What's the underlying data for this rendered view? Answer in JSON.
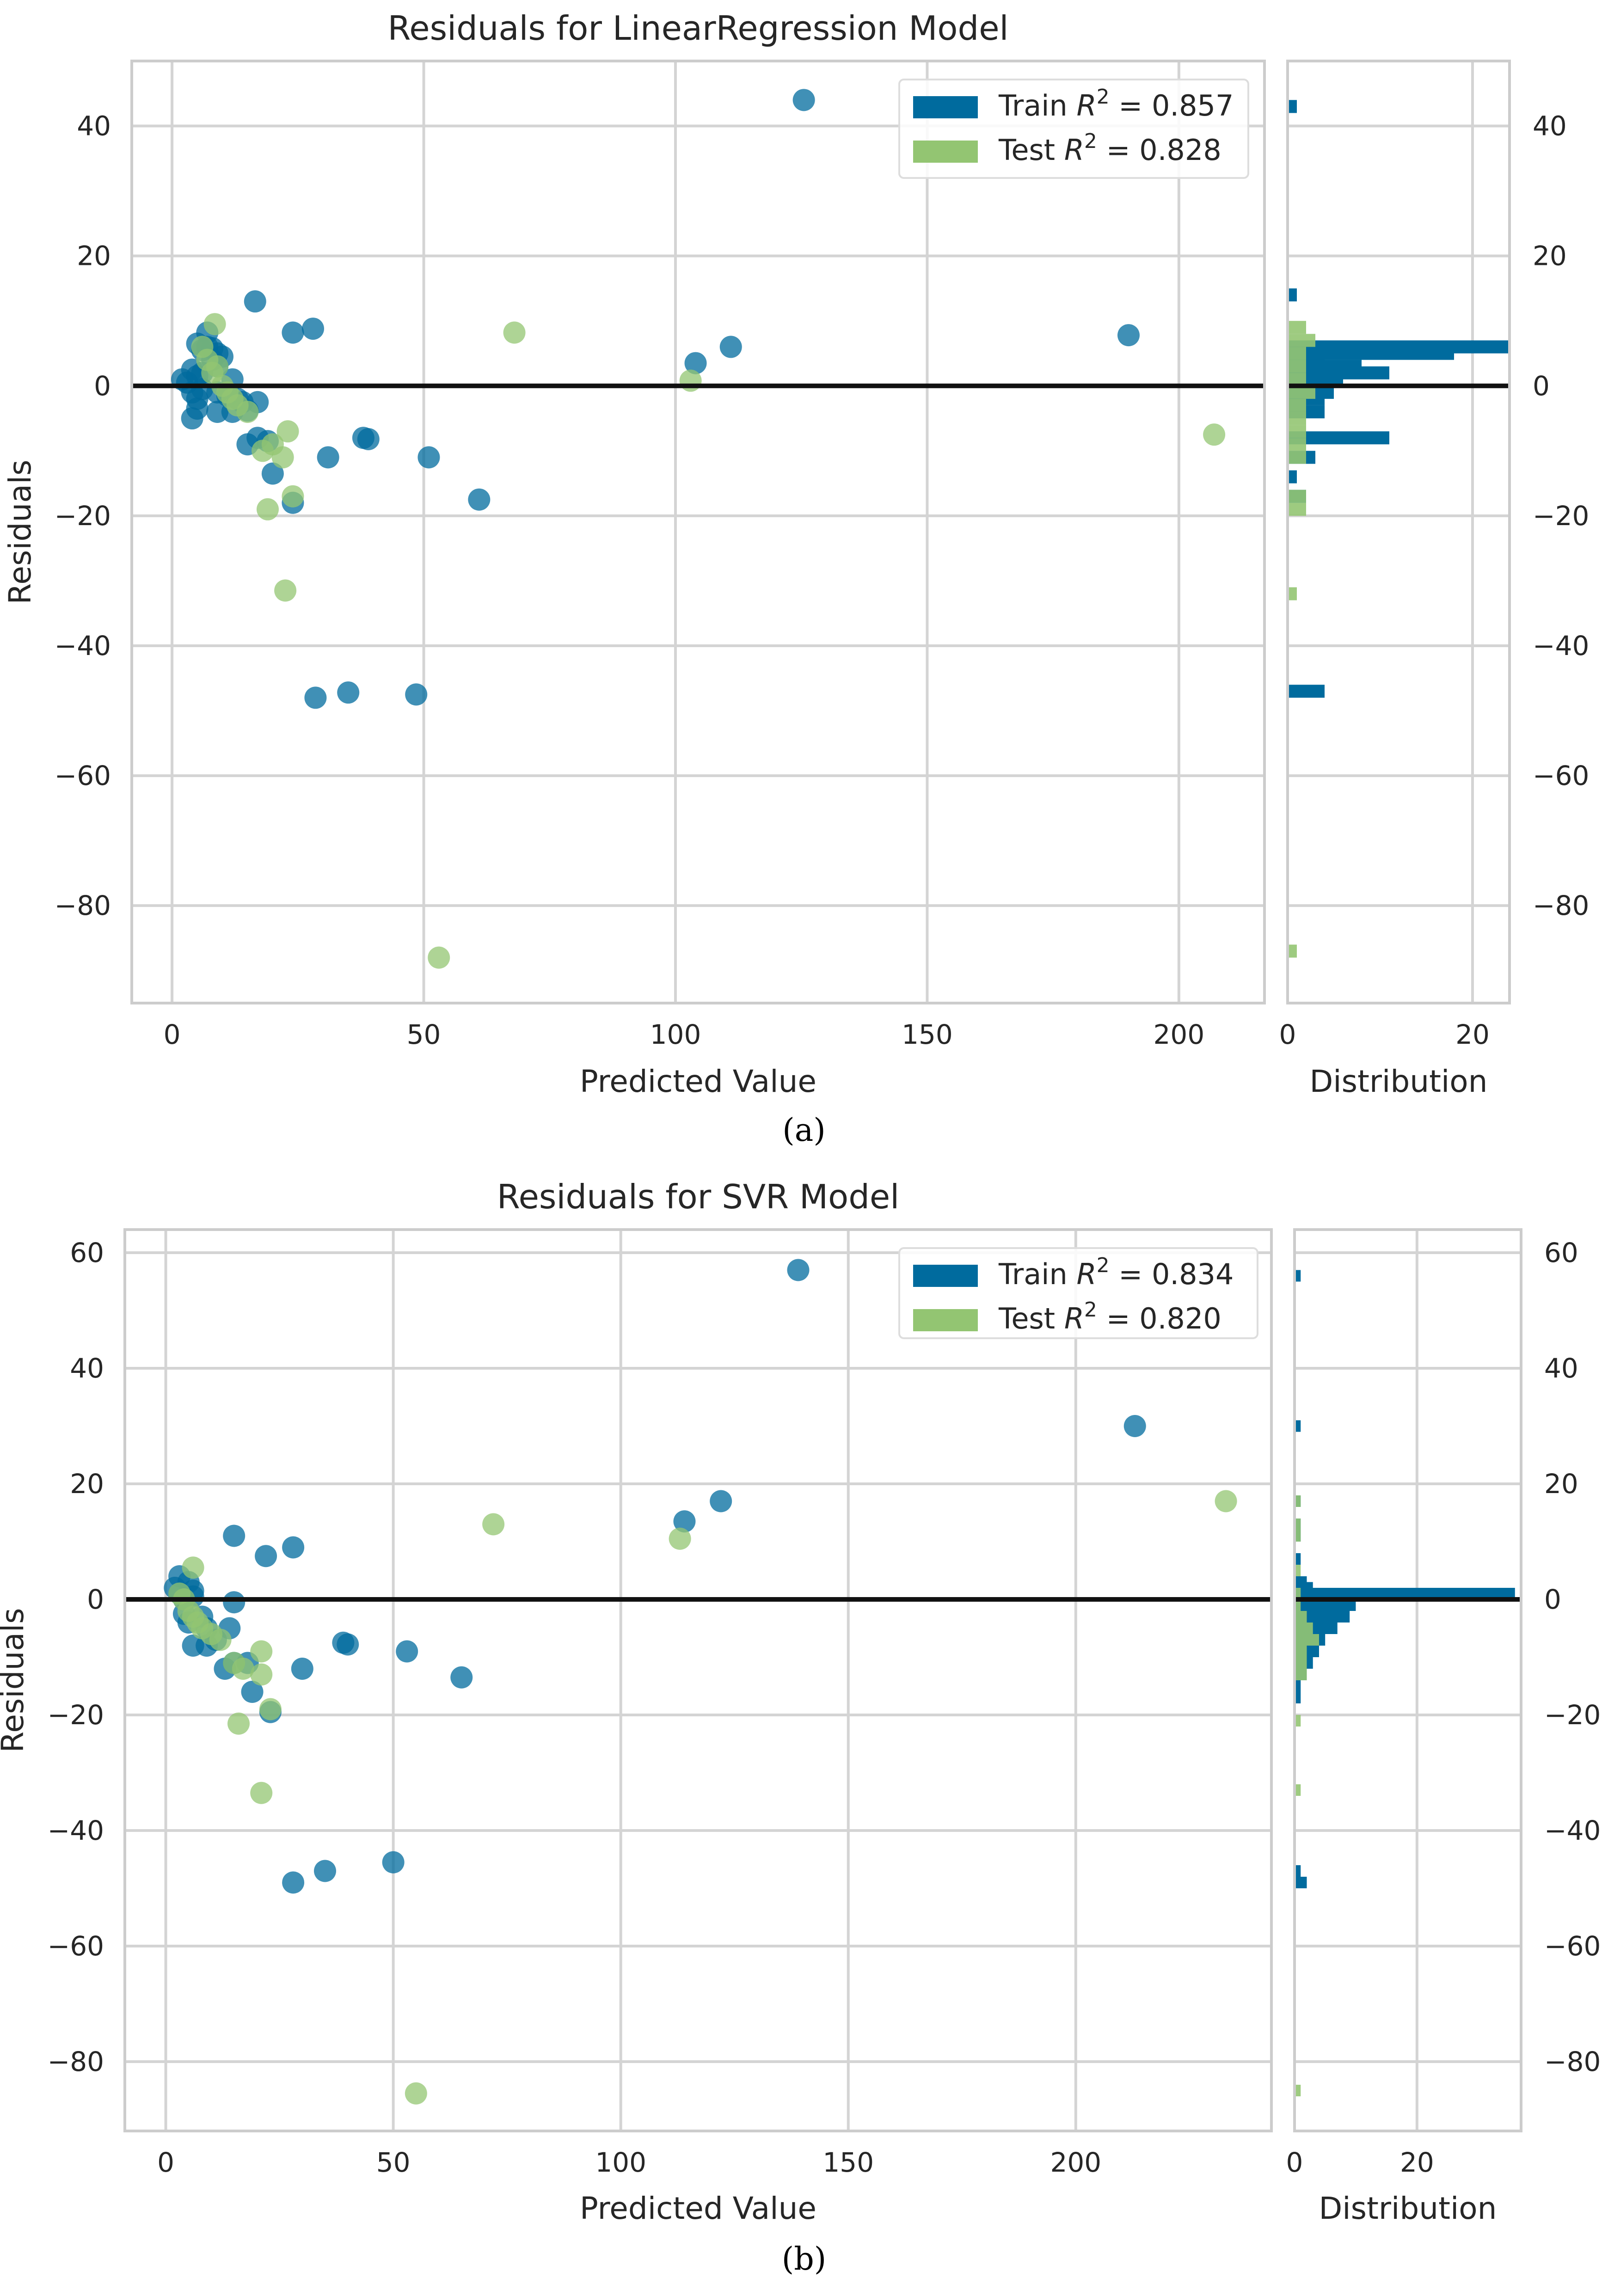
{
  "colors": {
    "train": "#006b9e",
    "test": "#93c572",
    "grid": "#d4d4d4",
    "zero": "#111111",
    "frame": "#cccccc"
  },
  "chart_data": [
    {
      "type": "scatter",
      "caption": "(a)",
      "title": "Residuals for LinearRegression Model",
      "xlabel": "Predicted Value",
      "ylabel": "Residuals",
      "hist_xlabel": "Distribution",
      "xlim": [
        -8,
        217
      ],
      "ylim": [
        -95,
        50
      ],
      "xticks": [
        0,
        50,
        100,
        150,
        200
      ],
      "yticks": [
        40,
        20,
        0,
        -20,
        -40,
        -60,
        -80
      ],
      "hist_xlim": [
        0,
        24
      ],
      "hist_xticks": [
        0,
        20
      ],
      "legend": [
        {
          "prefix": "Train ",
          "r": "R",
          "sup": "2",
          "value": " = 0.857"
        },
        {
          "prefix": "Test ",
          "r": "R",
          "sup": "2",
          "value": " = 0.828"
        }
      ],
      "series": [
        {
          "name": "Train",
          "points": [
            [
              125.5,
              44
            ],
            [
              16.5,
              13
            ],
            [
              24,
              8.2
            ],
            [
              28,
              8.8
            ],
            [
              104,
              3.5
            ],
            [
              111,
              6
            ],
            [
              190,
              7.8
            ],
            [
              7,
              8.2
            ],
            [
              5,
              6.5
            ],
            [
              7,
              6
            ],
            [
              8,
              5.8
            ],
            [
              9,
              5
            ],
            [
              10,
              4.5
            ],
            [
              6,
              5.5
            ],
            [
              8,
              4
            ],
            [
              9,
              3
            ],
            [
              4,
              2.5
            ],
            [
              5,
              1.5
            ],
            [
              2,
              1
            ],
            [
              6,
              2
            ],
            [
              12,
              1
            ],
            [
              3,
              0.5
            ],
            [
              4,
              -1
            ],
            [
              6,
              -0.5
            ],
            [
              9,
              -1
            ],
            [
              11,
              -1.5
            ],
            [
              13,
              -2
            ],
            [
              14,
              -2.5
            ],
            [
              17,
              -2.5
            ],
            [
              5,
              -2
            ],
            [
              5,
              -3.5
            ],
            [
              9,
              -4
            ],
            [
              12,
              -4
            ],
            [
              15,
              -3.8
            ],
            [
              4,
              -5
            ],
            [
              15,
              -9
            ],
            [
              17,
              -8
            ],
            [
              19,
              -8.5
            ],
            [
              38,
              -8
            ],
            [
              39,
              -8.2
            ],
            [
              31,
              -11
            ],
            [
              51,
              -11
            ],
            [
              20,
              -13.5
            ],
            [
              24,
              -18
            ],
            [
              61,
              -17.5
            ],
            [
              28.5,
              -48
            ],
            [
              35,
              -47.2
            ],
            [
              48.5,
              -47.5
            ]
          ]
        },
        {
          "name": "Test",
          "points": [
            [
              8.5,
              9.5
            ],
            [
              68,
              8.2
            ],
            [
              6,
              6
            ],
            [
              7,
              4
            ],
            [
              9,
              3
            ],
            [
              8,
              2
            ],
            [
              10,
              0
            ],
            [
              11,
              -1
            ],
            [
              12,
              -2
            ],
            [
              13,
              -3
            ],
            [
              15,
              -4
            ],
            [
              103,
              0.8
            ],
            [
              207,
              -7.5
            ],
            [
              20,
              -9
            ],
            [
              23,
              -7
            ],
            [
              18,
              -10
            ],
            [
              22,
              -11
            ],
            [
              24,
              -17
            ],
            [
              19,
              -19
            ],
            [
              22.5,
              -31.5
            ],
            [
              53,
              -88
            ]
          ]
        }
      ],
      "distribution": {
        "Train": [
          [
            43,
            1
          ],
          [
            14,
            1
          ],
          [
            6,
            24
          ],
          [
            5,
            18
          ],
          [
            4,
            4
          ],
          [
            3,
            8
          ],
          [
            2,
            11
          ],
          [
            1,
            6
          ],
          [
            0,
            5
          ],
          [
            -1,
            5
          ],
          [
            -2,
            4
          ],
          [
            -4,
            4
          ],
          [
            -8,
            11
          ],
          [
            -11,
            3
          ],
          [
            -14,
            1
          ],
          [
            -17,
            2
          ],
          [
            -47,
            4
          ]
        ],
        "Test": [
          [
            9,
            2
          ],
          [
            7,
            3
          ],
          [
            5,
            2
          ],
          [
            3,
            2
          ],
          [
            1,
            2
          ],
          [
            -1,
            3
          ],
          [
            -3,
            2
          ],
          [
            -5,
            2
          ],
          [
            -7,
            2
          ],
          [
            -9,
            2
          ],
          [
            -11,
            2
          ],
          [
            -17,
            2
          ],
          [
            -19,
            2
          ],
          [
            -32,
            1
          ],
          [
            -87,
            1
          ]
        ]
      }
    },
    {
      "type": "scatter",
      "caption": "(b)",
      "title": "Residuals for SVR Model",
      "xlabel": "Predicted Value",
      "ylabel": "Residuals",
      "hist_xlabel": "Distribution",
      "xlim": [
        -9,
        243
      ],
      "ylim": [
        -92,
        64
      ],
      "xticks": [
        0,
        50,
        100,
        150,
        200
      ],
      "yticks": [
        60,
        40,
        20,
        0,
        -20,
        -40,
        -60,
        -80
      ],
      "hist_xlim": [
        0,
        37
      ],
      "hist_xticks": [
        0,
        20
      ],
      "legend": [
        {
          "prefix": "Train ",
          "r": "R",
          "sup": "2",
          "value": " = 0.834"
        },
        {
          "prefix": "Test ",
          "r": "R",
          "sup": "2",
          "value": " = 0.820"
        }
      ],
      "series": [
        {
          "name": "Train",
          "points": [
            [
              139,
              57
            ],
            [
              213,
              30
            ],
            [
              122,
              17
            ],
            [
              114,
              13.5
            ],
            [
              15,
              11
            ],
            [
              22,
              7.5
            ],
            [
              28,
              9
            ],
            [
              3,
              4
            ],
            [
              5,
              3
            ],
            [
              6,
              1.5
            ],
            [
              2,
              2
            ],
            [
              3,
              1
            ],
            [
              4,
              0
            ],
            [
              6,
              0.5
            ],
            [
              15,
              -0.5
            ],
            [
              4,
              -2.5
            ],
            [
              5,
              -4
            ],
            [
              8,
              -3
            ],
            [
              9,
              -5
            ],
            [
              14,
              -5
            ],
            [
              6,
              -8
            ],
            [
              9,
              -8
            ],
            [
              11,
              -7
            ],
            [
              15,
              -11
            ],
            [
              13,
              -12
            ],
            [
              18,
              -11
            ],
            [
              30,
              -12
            ],
            [
              39,
              -7.5
            ],
            [
              40,
              -7.8
            ],
            [
              53,
              -9
            ],
            [
              65,
              -13.5
            ],
            [
              19,
              -16
            ],
            [
              23,
              -19.5
            ],
            [
              50,
              -45.5
            ],
            [
              35,
              -47
            ],
            [
              28,
              -49
            ]
          ]
        },
        {
          "name": "Test",
          "points": [
            [
              72,
              13
            ],
            [
              113,
              10.5
            ],
            [
              233,
              17
            ],
            [
              6,
              5.5
            ],
            [
              3,
              1
            ],
            [
              4,
              0
            ],
            [
              5,
              -2
            ],
            [
              6,
              -3
            ],
            [
              7,
              -4
            ],
            [
              8,
              -5
            ],
            [
              10,
              -6
            ],
            [
              12,
              -7
            ],
            [
              15,
              -11
            ],
            [
              17,
              -12
            ],
            [
              21,
              -13
            ],
            [
              21,
              -9
            ],
            [
              23,
              -19
            ],
            [
              16,
              -21.5
            ],
            [
              21,
              -33.5
            ],
            [
              55,
              -85.5
            ]
          ]
        }
      ],
      "distribution": {
        "Train": [
          [
            56,
            1
          ],
          [
            30,
            1
          ],
          [
            17,
            1
          ],
          [
            13,
            1
          ],
          [
            11,
            1
          ],
          [
            7,
            1
          ],
          [
            3,
            2
          ],
          [
            2,
            3
          ],
          [
            1,
            36
          ],
          [
            -1,
            10
          ],
          [
            -3,
            9
          ],
          [
            -5,
            7
          ],
          [
            -7,
            5
          ],
          [
            -9,
            4
          ],
          [
            -11,
            3
          ],
          [
            -13,
            2
          ],
          [
            -15,
            1
          ],
          [
            -17,
            1
          ],
          [
            -47,
            1
          ],
          [
            -49,
            2
          ]
        ],
        "Test": [
          [
            17,
            1
          ],
          [
            13,
            1
          ],
          [
            11,
            1
          ],
          [
            5,
            1
          ],
          [
            1,
            1
          ],
          [
            -1,
            1
          ],
          [
            -3,
            2
          ],
          [
            -5,
            3
          ],
          [
            -7,
            4
          ],
          [
            -9,
            2
          ],
          [
            -11,
            2
          ],
          [
            -13,
            2
          ],
          [
            -21,
            1
          ],
          [
            -33,
            1
          ],
          [
            -85,
            1
          ]
        ]
      }
    }
  ]
}
